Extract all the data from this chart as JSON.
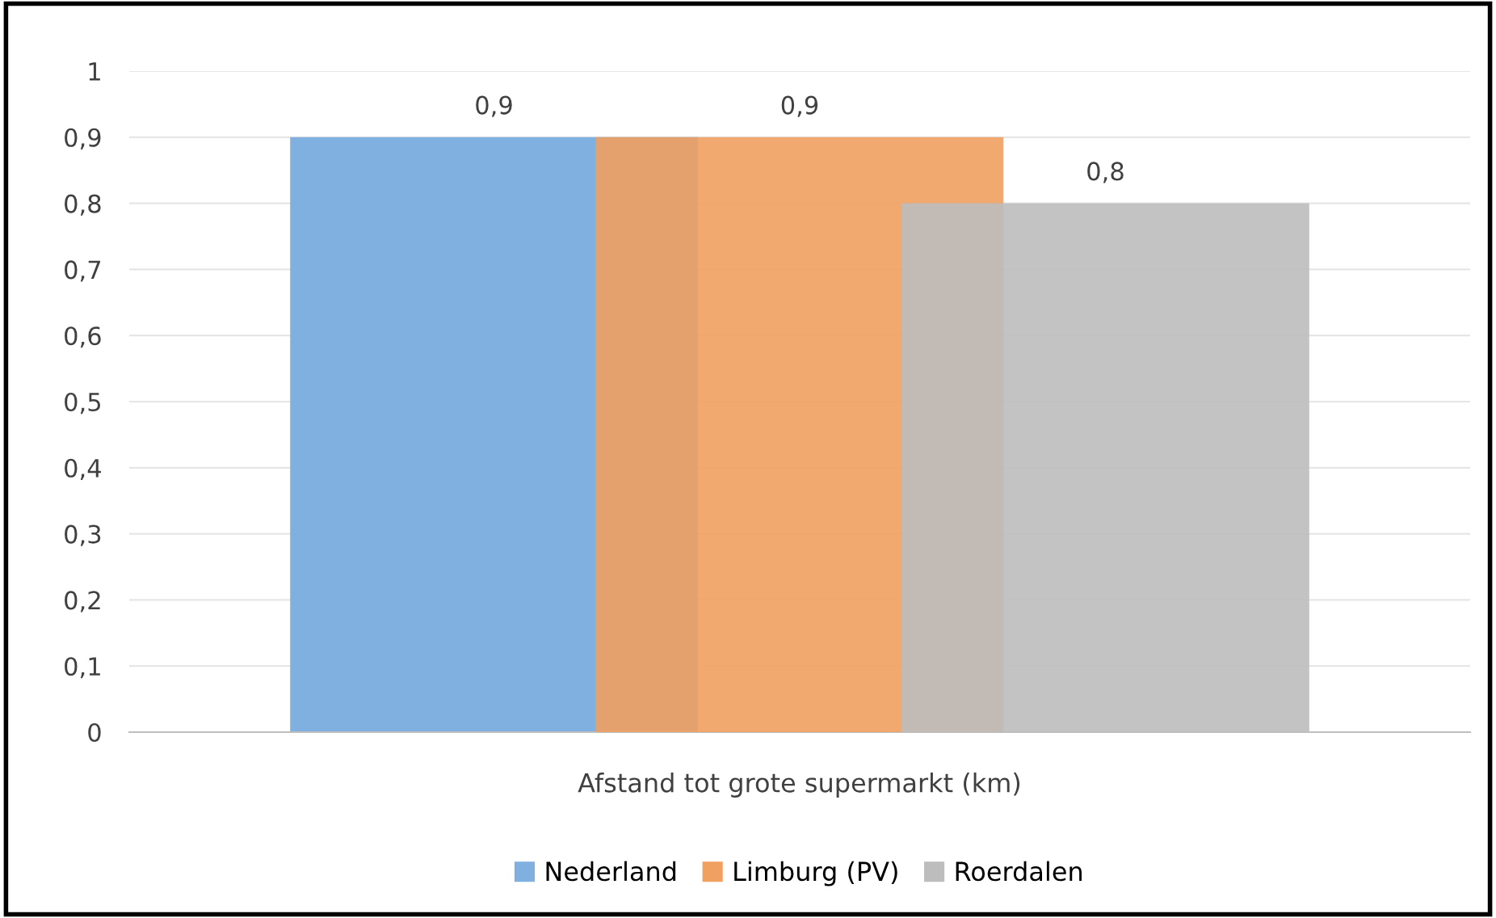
{
  "chart_data": {
    "type": "bar",
    "categories": [
      "Afstand tot grote supermarkt (km)"
    ],
    "series": [
      {
        "name": "Nederland",
        "color": "#7fb0e0",
        "values": [
          0.9
        ],
        "value_labels": [
          "0,9"
        ]
      },
      {
        "name": "Limburg (PV)",
        "color": "#f0a060",
        "values": [
          0.9
        ],
        "value_labels": [
          "0,9"
        ]
      },
      {
        "name": "Roerdalen",
        "color": "#bdbdbd",
        "values": [
          0.8
        ],
        "value_labels": [
          "0,8"
        ]
      }
    ],
    "ylim": [
      0,
      1
    ],
    "yticks": [
      0,
      {
        "value": 0.1,
        "label": "0,1"
      },
      {
        "value": 0.2,
        "label": "0,2"
      },
      {
        "value": 0.3,
        "label": "0,3"
      },
      {
        "value": 0.4,
        "label": "0,4"
      },
      {
        "value": 0.5,
        "label": "0,5"
      },
      {
        "value": 0.6,
        "label": "0,6"
      },
      {
        "value": 0.7,
        "label": "0,7"
      },
      {
        "value": 0.8,
        "label": "0,8"
      },
      {
        "value": 0.9,
        "label": "0,9"
      },
      1
    ],
    "grid": "y",
    "legend": "bottom"
  }
}
